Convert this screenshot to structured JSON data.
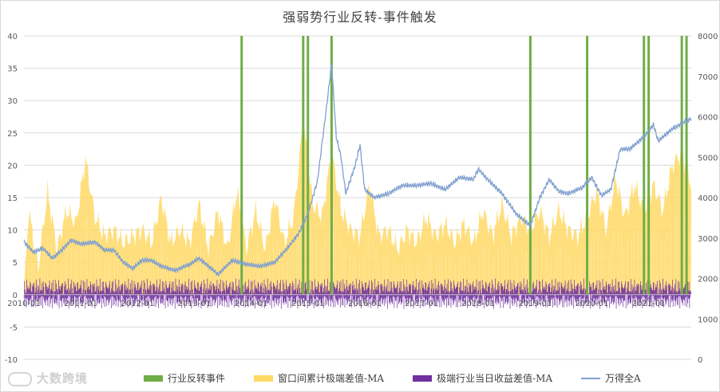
{
  "page": {
    "title": "强弱势行业反转-事件触发"
  },
  "chart_data": {
    "type": "bar",
    "title": "强弱势行业反转-事件触发",
    "x_tick_labels": [
      "2010-01",
      "2011-01",
      "2012-01",
      "2013-01",
      "2014-01",
      "2015-01",
      "2016-01",
      "2017-01",
      "2018-01",
      "2019-01",
      "2020-01",
      "2021-01"
    ],
    "x_range": [
      "2010-01",
      "2021-10"
    ],
    "left_axis": {
      "ticks": [
        -10,
        -5,
        0,
        5,
        10,
        15,
        20,
        25,
        30,
        35,
        40
      ],
      "ylim": [
        -10,
        40
      ]
    },
    "right_axis": {
      "ticks": [
        0,
        1000,
        2000,
        3000,
        4000,
        5000,
        6000,
        7000,
        8000
      ],
      "ylim": [
        0,
        8000
      ]
    },
    "grid": "horizontal",
    "legend_position": "bottom",
    "series": [
      {
        "name": "行业反转事件",
        "type": "event-bar",
        "axis": "left",
        "color": "#70ad47",
        "dates": [
          "2013-11",
          "2014-12",
          "2015-01",
          "2015-06",
          "2018-12",
          "2019-12",
          "2020-12",
          "2021-01",
          "2021-08",
          "2021-09"
        ]
      },
      {
        "name": "窗口间累计极端差值-MA",
        "type": "area",
        "axis": "left",
        "color": "#ffd966",
        "points": [
          [
            "2010-01",
            0
          ],
          [
            "2010-02",
            13
          ],
          [
            "2010-04",
            4
          ],
          [
            "2010-06",
            16
          ],
          [
            "2010-08",
            7
          ],
          [
            "2010-10",
            13
          ],
          [
            "2010-12",
            11
          ],
          [
            "2011-02",
            21
          ],
          [
            "2011-04",
            12
          ],
          [
            "2011-06",
            9
          ],
          [
            "2011-08",
            10
          ],
          [
            "2011-10",
            8
          ],
          [
            "2011-12",
            9
          ],
          [
            "2012-02",
            10
          ],
          [
            "2012-04",
            8
          ],
          [
            "2012-06",
            15
          ],
          [
            "2012-08",
            8
          ],
          [
            "2012-10",
            10
          ],
          [
            "2012-12",
            8
          ],
          [
            "2013-02",
            14
          ],
          [
            "2013-04",
            7
          ],
          [
            "2013-06",
            13
          ],
          [
            "2013-08",
            7
          ],
          [
            "2013-10",
            16
          ],
          [
            "2013-12",
            7
          ],
          [
            "2014-02",
            13
          ],
          [
            "2014-04",
            7
          ],
          [
            "2014-06",
            15
          ],
          [
            "2014-08",
            8
          ],
          [
            "2014-10",
            12
          ],
          [
            "2014-12",
            27
          ],
          [
            "2015-02",
            14
          ],
          [
            "2015-04",
            12
          ],
          [
            "2015-06",
            22
          ],
          [
            "2015-08",
            13
          ],
          [
            "2015-10",
            10
          ],
          [
            "2015-12",
            9
          ],
          [
            "2016-02",
            17
          ],
          [
            "2016-04",
            9
          ],
          [
            "2016-06",
            10
          ],
          [
            "2016-08",
            7
          ],
          [
            "2016-10",
            10
          ],
          [
            "2016-12",
            8
          ],
          [
            "2017-02",
            12
          ],
          [
            "2017-04",
            9
          ],
          [
            "2017-06",
            11
          ],
          [
            "2017-08",
            8
          ],
          [
            "2017-10",
            11
          ],
          [
            "2017-12",
            8
          ],
          [
            "2018-02",
            13
          ],
          [
            "2018-04",
            9
          ],
          [
            "2018-06",
            14
          ],
          [
            "2018-08",
            9
          ],
          [
            "2018-10",
            12
          ],
          [
            "2018-12",
            10
          ],
          [
            "2019-02",
            13
          ],
          [
            "2019-04",
            9
          ],
          [
            "2019-06",
            13
          ],
          [
            "2019-08",
            10
          ],
          [
            "2019-10",
            9
          ],
          [
            "2019-12",
            12
          ],
          [
            "2020-02",
            16
          ],
          [
            "2020-04",
            10
          ],
          [
            "2020-06",
            18
          ],
          [
            "2020-08",
            12
          ],
          [
            "2020-10",
            17
          ],
          [
            "2020-12",
            13
          ],
          [
            "2021-02",
            17
          ],
          [
            "2021-04",
            13
          ],
          [
            "2021-06",
            20
          ],
          [
            "2021-08",
            22
          ],
          [
            "2021-10",
            17
          ]
        ]
      },
      {
        "name": "极端行业当日收益差值-MA",
        "type": "spike-bar",
        "axis": "left",
        "color": "#7030a0",
        "y_range": [
          -5,
          5
        ]
      },
      {
        "name": "万得全A",
        "type": "line",
        "axis": "right",
        "color": "#7f9fcf",
        "points": [
          [
            "2010-01",
            2900
          ],
          [
            "2010-03",
            2650
          ],
          [
            "2010-05",
            2750
          ],
          [
            "2010-07",
            2500
          ],
          [
            "2010-09",
            2700
          ],
          [
            "2010-11",
            2950
          ],
          [
            "2011-01",
            2850
          ],
          [
            "2011-04",
            2900
          ],
          [
            "2011-06",
            2700
          ],
          [
            "2011-08",
            2700
          ],
          [
            "2011-10",
            2400
          ],
          [
            "2011-12",
            2250
          ],
          [
            "2012-02",
            2450
          ],
          [
            "2012-04",
            2450
          ],
          [
            "2012-06",
            2300
          ],
          [
            "2012-09",
            2200
          ],
          [
            "2012-12",
            2350
          ],
          [
            "2013-02",
            2500
          ],
          [
            "2013-04",
            2300
          ],
          [
            "2013-06",
            2100
          ],
          [
            "2013-09",
            2450
          ],
          [
            "2013-12",
            2350
          ],
          [
            "2014-03",
            2300
          ],
          [
            "2014-06",
            2400
          ],
          [
            "2014-09",
            2800
          ],
          [
            "2014-11",
            3100
          ],
          [
            "2015-01",
            3600
          ],
          [
            "2015-03",
            4400
          ],
          [
            "2015-05",
            6300
          ],
          [
            "2015-06",
            7300
          ],
          [
            "2015-07",
            5500
          ],
          [
            "2015-08",
            5000
          ],
          [
            "2015-09",
            4100
          ],
          [
            "2015-11",
            4800
          ],
          [
            "2015-12",
            5300
          ],
          [
            "2016-01",
            4200
          ],
          [
            "2016-03",
            4000
          ],
          [
            "2016-06",
            4100
          ],
          [
            "2016-09",
            4300
          ],
          [
            "2016-12",
            4300
          ],
          [
            "2017-03",
            4350
          ],
          [
            "2017-06",
            4200
          ],
          [
            "2017-09",
            4500
          ],
          [
            "2017-12",
            4450
          ],
          [
            "2018-01",
            4700
          ],
          [
            "2018-03",
            4450
          ],
          [
            "2018-06",
            4100
          ],
          [
            "2018-09",
            3600
          ],
          [
            "2018-12",
            3300
          ],
          [
            "2019-02",
            4000
          ],
          [
            "2019-04",
            4450
          ],
          [
            "2019-06",
            4150
          ],
          [
            "2019-08",
            4100
          ],
          [
            "2019-11",
            4250
          ],
          [
            "2020-01",
            4500
          ],
          [
            "2020-03",
            4050
          ],
          [
            "2020-05",
            4200
          ],
          [
            "2020-07",
            5200
          ],
          [
            "2020-09",
            5200
          ],
          [
            "2020-12",
            5500
          ],
          [
            "2021-02",
            5800
          ],
          [
            "2021-03",
            5400
          ],
          [
            "2021-06",
            5700
          ],
          [
            "2021-09",
            5900
          ],
          [
            "2021-10",
            5950
          ]
        ]
      }
    ]
  }
}
